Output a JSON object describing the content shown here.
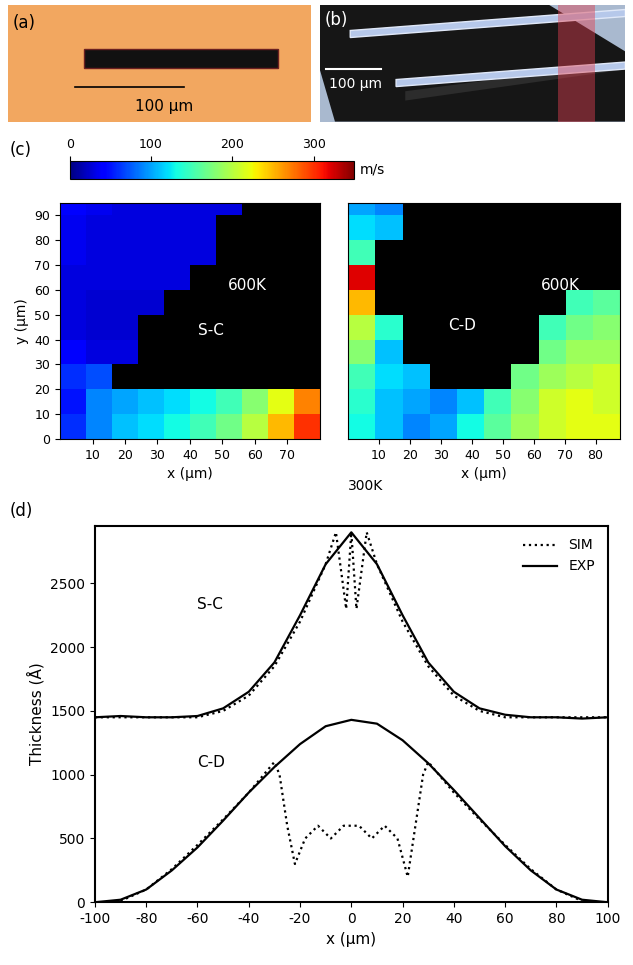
{
  "panels": [
    {
      "panel": "(a)",
      "type": "image",
      "scale_bar": "100 µm"
    },
    {
      "panel": "(b)",
      "type": "image",
      "scale_bar": "100 µm"
    }
  ],
  "chart_data": [
    {
      "type": "heatmap",
      "panel": "(c)",
      "xlabel": "x (µm)",
      "ylabel": "y (µm)",
      "xlim": [
        0,
        80
      ],
      "ylim": [
        0,
        95
      ],
      "xticks": [
        10,
        20,
        30,
        40,
        50,
        60,
        70
      ],
      "yticks": [
        0,
        10,
        20,
        30,
        40,
        50,
        60,
        70,
        80,
        90
      ],
      "annotations": [
        "600K",
        "S-C"
      ],
      "colorbar": {
        "label": "m/s",
        "range": [
          0,
          350
        ],
        "ticks": [
          0,
          100,
          200,
          300
        ]
      },
      "x_edges": [
        0,
        8,
        16,
        24,
        32,
        40,
        48,
        56,
        64,
        72,
        80
      ],
      "y_edges": [
        0,
        10,
        20,
        30,
        40,
        50,
        60,
        70,
        80,
        90,
        95
      ],
      "cells": [
        [
          60,
          90,
          110,
          120,
          130,
          150,
          170,
          200,
          250,
          300
        ],
        [
          50,
          90,
          100,
          110,
          120,
          130,
          150,
          180,
          220,
          270
        ],
        [
          60,
          70,
          null,
          null,
          null,
          null,
          null,
          null,
          null,
          null
        ],
        [
          40,
          30,
          30,
          null,
          null,
          null,
          null,
          null,
          null,
          null
        ],
        [
          30,
          25,
          25,
          null,
          null,
          null,
          null,
          null,
          null,
          null
        ],
        [
          30,
          25,
          25,
          25,
          null,
          null,
          null,
          null,
          null,
          null
        ],
        [
          30,
          30,
          30,
          30,
          30,
          null,
          null,
          null,
          null,
          null
        ],
        [
          35,
          30,
          30,
          30,
          30,
          30,
          null,
          null,
          null,
          null
        ],
        [
          35,
          30,
          30,
          30,
          30,
          30,
          null,
          null,
          null,
          null
        ],
        [
          40,
          35,
          30,
          30,
          30,
          30,
          30,
          null,
          null,
          null
        ]
      ]
    },
    {
      "type": "heatmap",
      "xlabel": "x (µm)",
      "xlim": [
        0,
        88
      ],
      "ylim": [
        0,
        95
      ],
      "tick_labels": "x",
      "xticks": [
        10,
        20,
        30,
        40,
        50,
        60,
        70,
        80
      ],
      "annotations": [
        "600K",
        "C-D",
        "300K"
      ],
      "x_edges": [
        0,
        8.8,
        17.6,
        26.4,
        35.2,
        44,
        52.8,
        61.6,
        70.4,
        79.2,
        88
      ],
      "y_edges": [
        0,
        10,
        20,
        30,
        40,
        50,
        60,
        70,
        80,
        90,
        95
      ],
      "cells": [
        [
          130,
          110,
          90,
          100,
          130,
          160,
          190,
          210,
          220,
          220
        ],
        [
          140,
          110,
          100,
          90,
          110,
          150,
          180,
          210,
          220,
          210
        ],
        [
          150,
          120,
          110,
          null,
          null,
          null,
          170,
          190,
          200,
          210
        ],
        [
          180,
          110,
          null,
          null,
          null,
          null,
          null,
          170,
          190,
          190
        ],
        [
          200,
          140,
          null,
          null,
          null,
          null,
          null,
          150,
          170,
          180
        ],
        [
          250,
          null,
          null,
          null,
          null,
          null,
          null,
          null,
          150,
          160
        ],
        [
          320,
          null,
          null,
          null,
          null,
          null,
          null,
          null,
          null,
          null
        ],
        [
          150,
          null,
          null,
          null,
          null,
          null,
          null,
          null,
          null,
          null
        ],
        [
          120,
          110,
          null,
          null,
          null,
          null,
          null,
          null,
          null,
          null
        ],
        [
          100,
          90,
          null,
          null,
          null,
          null,
          null,
          null,
          null,
          null
        ]
      ]
    },
    {
      "type": "line",
      "panel": "(d)",
      "xlabel": "x (µm)",
      "ylabel": "Thickness (Å)",
      "xlim": [
        -100,
        100
      ],
      "ylim": [
        0,
        2950
      ],
      "xticks": [
        -100,
        -80,
        -60,
        -40,
        -20,
        0,
        20,
        40,
        60,
        80,
        100
      ],
      "yticks": [
        0,
        500,
        1000,
        1500,
        2000,
        2500
      ],
      "legend": "upper right",
      "annotations": [
        "S-C",
        "C-D"
      ],
      "series": [
        {
          "name": "SIM",
          "line_style": "dotted",
          "color": "#000000",
          "x": [
            -100,
            -60,
            -50,
            -40,
            -30,
            -20,
            -10,
            -6,
            -2,
            0,
            2,
            6,
            10,
            20,
            30,
            40,
            50,
            60,
            100
          ],
          "values": [
            1450,
            1450,
            1500,
            1620,
            1850,
            2200,
            2650,
            2900,
            2300,
            2900,
            2300,
            2900,
            2650,
            2200,
            1850,
            1620,
            1500,
            1450,
            1450
          ]
        },
        {
          "name": "EXP",
          "line_style": "solid",
          "color": "#000000",
          "x": [
            -100,
            -90,
            -80,
            -70,
            -60,
            -50,
            -40,
            -30,
            -20,
            -10,
            0,
            10,
            20,
            30,
            40,
            50,
            60,
            70,
            80,
            90,
            100
          ],
          "values": [
            1450,
            1460,
            1450,
            1450,
            1460,
            1520,
            1650,
            1880,
            2250,
            2650,
            2900,
            2650,
            2250,
            1880,
            1650,
            1520,
            1470,
            1450,
            1450,
            1440,
            1450
          ]
        },
        {
          "name": "SIM",
          "line_style": "dotted",
          "color": "#000000",
          "x": [
            -90,
            -80,
            -70,
            -60,
            -50,
            -40,
            -30,
            -28,
            -25,
            -22,
            -18,
            -13,
            -8,
            -3,
            3,
            8,
            13,
            18,
            22,
            25,
            28,
            30,
            40,
            50,
            60,
            70,
            80,
            90
          ],
          "values": [
            10,
            100,
            260,
            450,
            650,
            860,
            1100,
            1000,
            600,
            300,
            500,
            600,
            500,
            600,
            600,
            500,
            600,
            500,
            200,
            600,
            1000,
            1100,
            860,
            650,
            450,
            260,
            100,
            10
          ]
        },
        {
          "name": "EXP",
          "line_style": "solid",
          "color": "#000000",
          "x": [
            -100,
            -90,
            -80,
            -70,
            -60,
            -50,
            -40,
            -30,
            -20,
            -10,
            0,
            10,
            20,
            30,
            40,
            50,
            60,
            70,
            80,
            90,
            100
          ],
          "values": [
            0,
            20,
            100,
            250,
            430,
            640,
            860,
            1060,
            1240,
            1380,
            1430,
            1400,
            1270,
            1090,
            880,
            660,
            440,
            250,
            100,
            20,
            0
          ]
        }
      ]
    }
  ]
}
